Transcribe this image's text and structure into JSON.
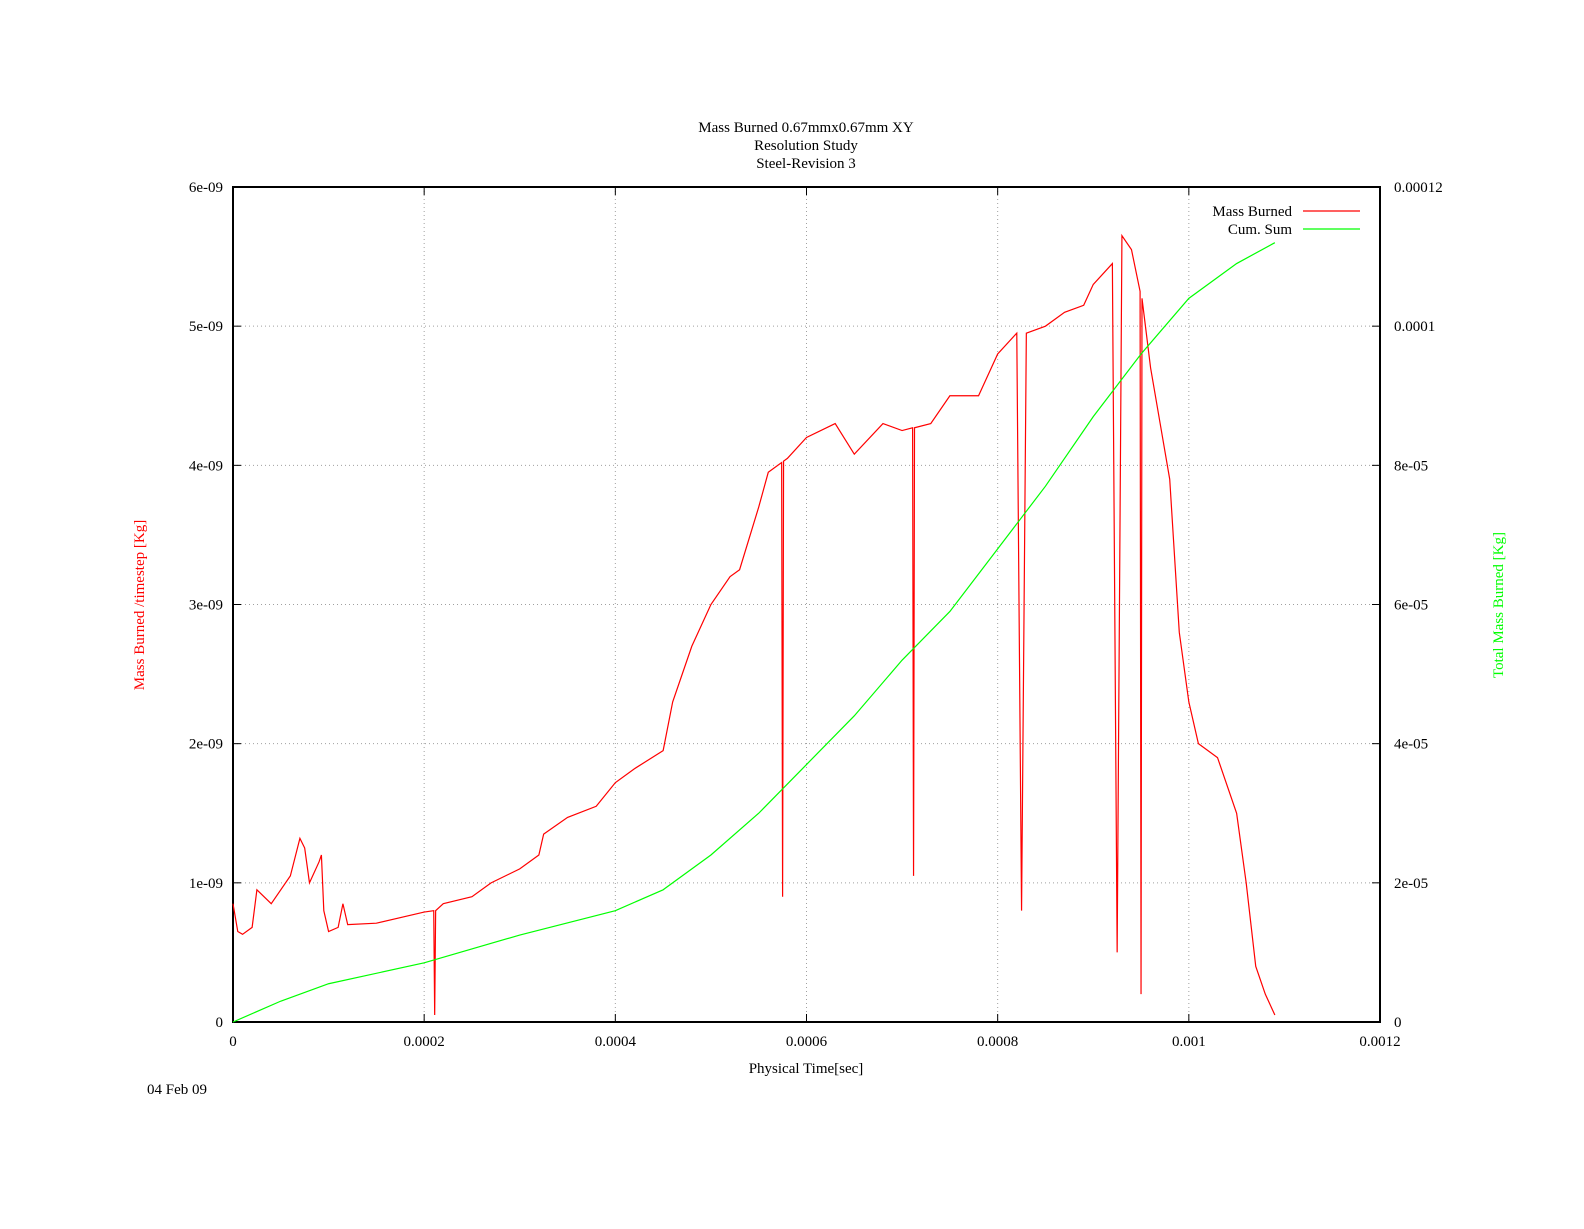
{
  "chart_data": {
    "type": "line",
    "title": [
      "Mass Burned 0.67mmx0.67mm XY",
      "Resolution Study",
      "Steel-Revision 3"
    ],
    "xlabel": "Physical Time[sec]",
    "ylabel": "Mass Burned /timestep  [Kg]",
    "y2label": "Total Mass Burned [Kg]",
    "date": "04 Feb 09",
    "xlim": [
      0,
      0.0012
    ],
    "ylim": [
      0,
      6e-09
    ],
    "y2lim": [
      0,
      0.00012
    ],
    "xticks": [
      0,
      0.0002,
      0.0004,
      0.0006,
      0.0008,
      0.001,
      0.0012
    ],
    "yticks": [
      0,
      {
        "value": 1e-09,
        "label": "1e-09"
      },
      {
        "value": 2e-09,
        "label": "2e-09"
      },
      {
        "value": 3e-09,
        "label": "3e-09"
      },
      {
        "value": 4e-09,
        "label": "4e-09"
      },
      {
        "value": 5e-09,
        "label": "5e-09"
      },
      {
        "value": 6e-09,
        "label": "6e-09"
      }
    ],
    "y2ticks": [
      0,
      {
        "value": 2e-05,
        "label": "2e-05"
      },
      {
        "value": 4e-05,
        "label": "4e-05"
      },
      {
        "value": 6e-05,
        "label": "6e-05"
      },
      {
        "value": 8e-05,
        "label": "8e-05"
      },
      0.0001,
      0.00012
    ],
    "grid": true,
    "legend": "upper right",
    "series": [
      {
        "name": "Mass Burned",
        "color": "#ff0000",
        "x": [
          0,
          5e-06,
          1e-05,
          2e-05,
          2.5e-05,
          4e-05,
          6e-05,
          7e-05,
          7.5e-05,
          8e-05,
          9e-05,
          9.25e-05,
          9.5e-05,
          0.0001,
          0.00011,
          0.000115,
          0.00012,
          0.00015,
          0.0002,
          0.00021,
          0.000211,
          0.000212,
          0.00022,
          0.00025,
          0.00027,
          0.0003,
          0.00032,
          0.000325,
          0.00035,
          0.00038,
          0.0004,
          0.00042,
          0.00045,
          0.00046,
          0.00048,
          0.0005,
          0.00052,
          0.00053,
          0.00055,
          0.00056,
          0.000574,
          0.000575,
          0.000576,
          0.00058,
          0.0006,
          0.00063,
          0.00065,
          0.00068,
          0.0007,
          0.000711,
          0.000712,
          0.000713,
          0.00073,
          0.00075,
          0.00078,
          0.0008,
          0.00082,
          0.000825,
          0.00083,
          0.00085,
          0.00087,
          0.00089,
          0.0009,
          0.00092,
          0.000925,
          0.00093,
          0.00094,
          0.000949,
          0.00095,
          0.000951,
          0.00096,
          0.00097,
          0.00098,
          0.00099,
          0.001,
          0.00101,
          0.00103,
          0.00105,
          0.00106,
          0.00107,
          0.00108,
          0.00109
        ],
        "values": [
          8.5e-10,
          6.5e-10,
          6.3e-10,
          6.8e-10,
          9.5e-10,
          8.5e-10,
          1.05e-09,
          1.32e-09,
          1.25e-09,
          1e-09,
          1.15e-09,
          1.2e-09,
          8e-10,
          6.5e-10,
          6.8e-10,
          8.5e-10,
          7e-10,
          7.1e-10,
          7.9e-10,
          8e-10,
          5e-11,
          8e-10,
          8.5e-10,
          9e-10,
          1e-09,
          1.1e-09,
          1.2e-09,
          1.35e-09,
          1.47e-09,
          1.55e-09,
          1.72e-09,
          1.82e-09,
          1.95e-09,
          2.3e-09,
          2.7e-09,
          3e-09,
          3.2e-09,
          3.25e-09,
          3.7e-09,
          3.95e-09,
          4.02e-09,
          9e-10,
          4.03e-09,
          4.05e-09,
          4.2e-09,
          4.3e-09,
          4.08e-09,
          4.3e-09,
          4.25e-09,
          4.27e-09,
          1.05e-09,
          4.27e-09,
          4.3e-09,
          4.5e-09,
          4.5e-09,
          4.8e-09,
          4.95e-09,
          8e-10,
          4.95e-09,
          5e-09,
          5.1e-09,
          5.15e-09,
          5.3e-09,
          5.45e-09,
          5e-10,
          5.65e-09,
          5.55e-09,
          5.25e-09,
          2e-10,
          5.2e-09,
          4.7e-09,
          4.3e-09,
          3.9e-09,
          2.8e-09,
          2.3e-09,
          2e-09,
          1.9e-09,
          1.5e-09,
          1e-09,
          4e-10,
          2e-10,
          5e-11
        ]
      },
      {
        "name": "Cum. Sum",
        "color": "#00ff00",
        "axis": "y2",
        "x": [
          0,
          5e-05,
          0.0001,
          0.0002,
          0.0003,
          0.0004,
          0.00045,
          0.0005,
          0.00055,
          0.0006,
          0.00065,
          0.0007,
          0.00075,
          0.0008,
          0.00085,
          0.0009,
          0.00095,
          0.001,
          0.00105,
          0.00109
        ],
        "values": [
          0,
          3e-06,
          5.5e-06,
          8.5e-06,
          1.25e-05,
          1.6e-05,
          1.9e-05,
          2.4e-05,
          3e-05,
          3.7e-05,
          4.4e-05,
          5.2e-05,
          5.9e-05,
          6.8e-05,
          7.7e-05,
          8.7e-05,
          9.6e-05,
          0.000104,
          0.000109,
          0.000112
        ]
      }
    ]
  }
}
